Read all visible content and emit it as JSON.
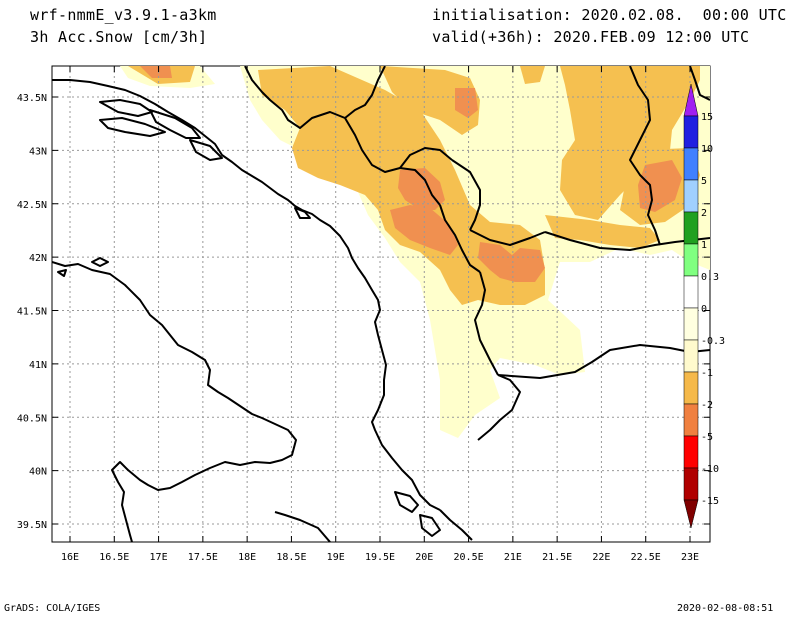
{
  "header": {
    "model": "wrf-nmmE_v3.9.1-a3km",
    "field": "3h Acc.Snow [cm/3h]",
    "init_label": "initialisation:",
    "init_value": "2020.02.08.  00:00 UTC",
    "valid_label": "valid(+36h):",
    "valid_value": "2020.FEB.09 12:00 UTC"
  },
  "footer": {
    "credit": "GrADS: COLA/IGES",
    "timestamp": "2020-02-08-08:51"
  },
  "map": {
    "lon_ticks": [
      "16E",
      "16.5E",
      "17E",
      "17.5E",
      "18E",
      "18.5E",
      "19E",
      "19.5E",
      "20E",
      "20.5E",
      "21E",
      "21.5E",
      "22E",
      "22.5E",
      "23E"
    ],
    "lat_ticks": [
      "43.5N",
      "43N",
      "42.5N",
      "42N",
      "41.5N",
      "41N",
      "40.5N",
      "40N",
      "39.5N"
    ],
    "lon_values": [
      16,
      16.5,
      17,
      17.5,
      18,
      18.5,
      19,
      19.5,
      20,
      20.5,
      21,
      21.5,
      22,
      22.5,
      23
    ],
    "lat_values": [
      43.5,
      43,
      42.5,
      42,
      41.5,
      41,
      40.5,
      40,
      39.5
    ],
    "land_color": "#ffffff",
    "grid": true
  },
  "colorbar": {
    "labels": [
      "15",
      "10",
      "5",
      "2",
      "1",
      "0.3",
      "0",
      "-0.3",
      "-1",
      "-2",
      "-5",
      "-10",
      "-15"
    ],
    "colors": [
      "#a020f0",
      "#2020e0",
      "#4080ff",
      "#a0d0ff",
      "#20a020",
      "#80ff80",
      "#ffffff",
      "#ffffe0",
      "#fffacd",
      "#f5b94a",
      "#f08040",
      "#ff0000",
      "#b00000",
      "#800000"
    ]
  },
  "shading_colors": {
    "light": "#ffffcc",
    "medium": "#f5c050",
    "dark": "#f09050"
  }
}
